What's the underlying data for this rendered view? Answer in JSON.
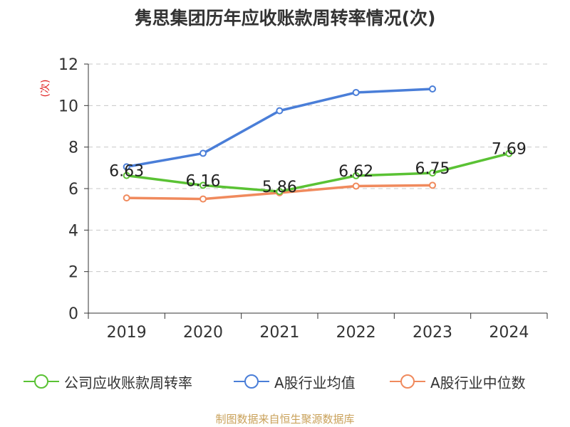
{
  "title": "隽思集团历年应收账款周转率情况(次)",
  "unit": "(次)",
  "source": "制图数据来自恒生聚源数据库",
  "chart_data": {
    "type": "line",
    "title": "隽思集团历年应收账款周转率情况(次)",
    "ylabel": "(次)",
    "categories": [
      "2019",
      "2020",
      "2021",
      "2022",
      "2023",
      "2024"
    ],
    "ylim": [
      0,
      12
    ],
    "yticks": [
      0,
      2,
      4,
      6,
      8,
      10,
      12
    ],
    "grid": true,
    "legend_position": "bottom",
    "series": [
      {
        "name": "公司应收账款周转率",
        "color": "#5ac234",
        "values": [
          6.63,
          6.16,
          5.86,
          6.62,
          6.75,
          7.69
        ],
        "labels": [
          "6.63",
          "6.16",
          "5.86",
          "6.62",
          "6.75",
          "7.69"
        ]
      },
      {
        "name": "A股行业均值",
        "color": "#4a7ed8",
        "values": [
          7.05,
          7.7,
          9.75,
          10.63,
          10.8,
          null
        ]
      },
      {
        "name": "A股行业中位数",
        "color": "#f08a5d",
        "values": [
          5.55,
          5.5,
          5.8,
          6.12,
          6.16,
          null
        ]
      }
    ]
  }
}
